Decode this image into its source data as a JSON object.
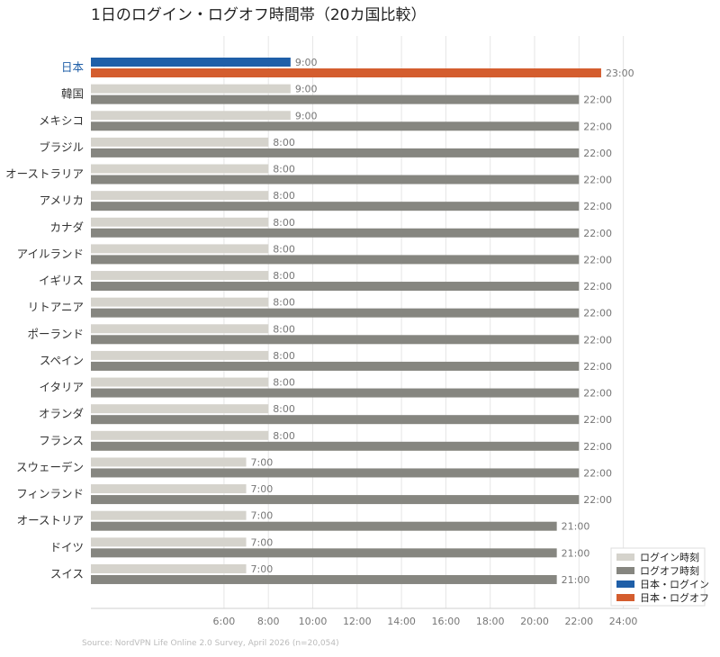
{
  "chart_data": {
    "type": "bar",
    "orientation": "horizontal",
    "title": "1日のログイン・ログオフ時間帯（20カ国比較）",
    "source": "Source: NordVPN Life Online 2.0 Survey, April 2026 (n=20,054)",
    "categories": [
      "日本",
      "韓国",
      "メキシコ",
      "ブラジル",
      "オーストラリア",
      "アメリカ",
      "カナダ",
      "アイルランド",
      "イギリス",
      "リトアニア",
      "ポーランド",
      "スペイン",
      "イタリア",
      "オランダ",
      "フランス",
      "スウェーデン",
      "フィンランド",
      "オーストリア",
      "ドイツ",
      "スイス"
    ],
    "highlight_category": "日本",
    "series": [
      {
        "name": "ログイン時刻",
        "values": [
          9,
          9,
          9,
          8,
          8,
          8,
          8,
          8,
          8,
          8,
          8,
          8,
          8,
          8,
          8,
          7,
          7,
          7,
          7,
          7
        ],
        "labels": [
          "9:00",
          "9:00",
          "9:00",
          "8:00",
          "8:00",
          "8:00",
          "8:00",
          "8:00",
          "8:00",
          "8:00",
          "8:00",
          "8:00",
          "8:00",
          "8:00",
          "8:00",
          "7:00",
          "7:00",
          "7:00",
          "7:00",
          "7:00"
        ]
      },
      {
        "name": "ログオフ時刻",
        "values": [
          23,
          22,
          22,
          22,
          22,
          22,
          22,
          22,
          22,
          22,
          22,
          22,
          22,
          22,
          22,
          22,
          22,
          21,
          21,
          21
        ],
        "labels": [
          "23:00",
          "22:00",
          "22:00",
          "22:00",
          "22:00",
          "22:00",
          "22:00",
          "22:00",
          "22:00",
          "22:00",
          "22:00",
          "22:00",
          "22:00",
          "22:00",
          "22:00",
          "22:00",
          "22:00",
          "21:00",
          "21:00",
          "21:00"
        ]
      }
    ],
    "x_ticks": [
      6,
      8,
      10,
      12,
      14,
      16,
      18,
      20,
      22,
      24
    ],
    "x_tick_labels": [
      "6:00",
      "8:00",
      "10:00",
      "12:00",
      "14:00",
      "16:00",
      "18:00",
      "20:00",
      "22:00",
      "24:00"
    ],
    "xlim": [
      0,
      24
    ],
    "grid": true,
    "legend": {
      "position": "bottom-right",
      "entries": [
        {
          "label": "ログイン時刻",
          "color": "#d5d3cc"
        },
        {
          "label": "ログオフ時刻",
          "color": "#868680"
        },
        {
          "label": "日本・ログイン",
          "color": "#1f5fa8"
        },
        {
          "label": "日本・ログオフ",
          "color": "#d45d2e"
        }
      ]
    },
    "colors": {
      "login": "#d5d3cc",
      "logoff": "#868680",
      "japan_login": "#1f5fa8",
      "japan_logoff": "#d45d2e"
    }
  }
}
